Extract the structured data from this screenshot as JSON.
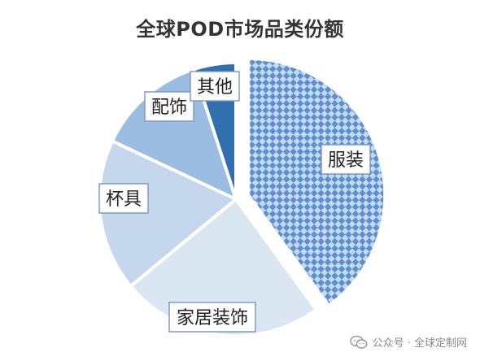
{
  "chart_data": {
    "type": "pie",
    "title": "全球POD市场品类份额",
    "start_angle_deg": 90,
    "clockwise": true,
    "slices": [
      {
        "label": "服装",
        "value": 40,
        "color": "#6f9ed6",
        "pattern": "checker",
        "exploded": true
      },
      {
        "label": "家居装饰",
        "value": 24,
        "color": "#dbe6f3",
        "pattern": "none",
        "exploded": false
      },
      {
        "label": "杯具",
        "value": 18,
        "color": "#c4d7ed",
        "pattern": "none",
        "exploded": false
      },
      {
        "label": "配饰",
        "value": 13,
        "color": "#9bbde1",
        "pattern": "none",
        "exploded": false
      },
      {
        "label": "其他",
        "value": 5,
        "color": "#2f6fad",
        "pattern": "none",
        "exploded": false
      }
    ],
    "legend": "none"
  },
  "watermark": {
    "icon": "wechat-icon",
    "text": "公众号 · 全球定制网"
  }
}
